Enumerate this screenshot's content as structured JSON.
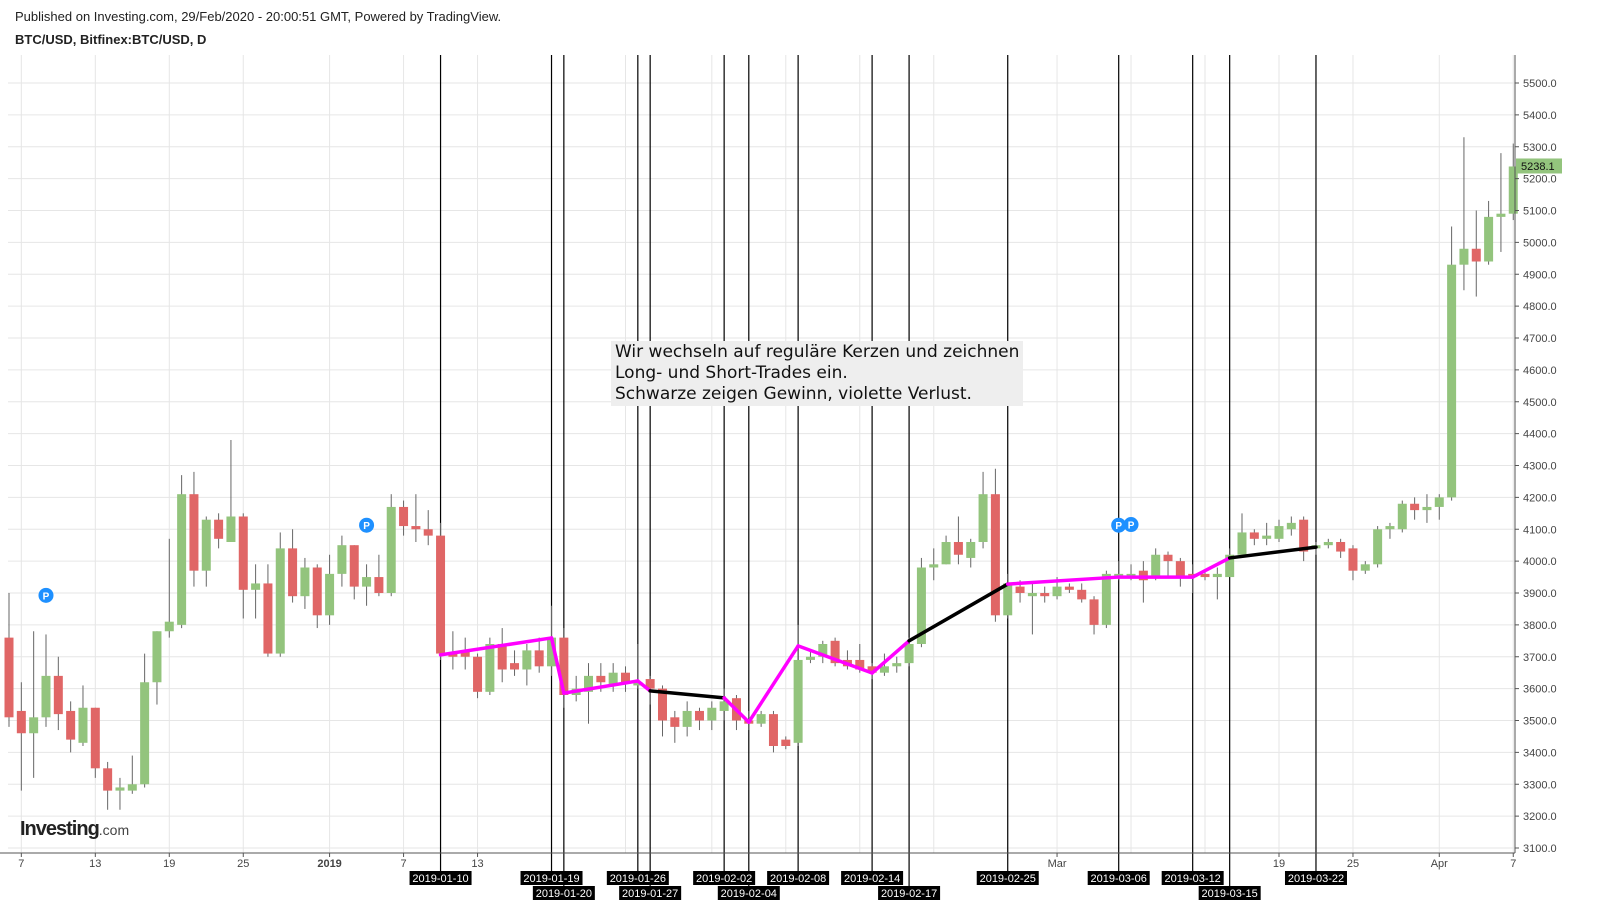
{
  "header": {
    "published": "Published on Investing.com, 29/Feb/2020 - 20:00:51 GMT, Powered by TradingView.",
    "symbol": "BTC/USD, Bitfinex:BTC/USD, D"
  },
  "annotation": {
    "lines": [
      "Wir wechseln auf reguläre Kerzen und zeichnen",
      "Long- und Short-Trades ein.",
      "Schwarze zeigen Gewinn, violette Verlust."
    ]
  },
  "logo": {
    "brand": "Investing",
    "suffix": ".com"
  },
  "colors": {
    "up": "#93c47d",
    "down": "#e06666",
    "loss": "#ff00ff",
    "profit": "#000000",
    "marker": "#1e90ff"
  },
  "chart_data": {
    "type": "candlestick",
    "title": "",
    "ylim": [
      3100,
      5500
    ],
    "y_ticks": [
      "3100.0",
      "3200.0",
      "3300.0",
      "3400.0",
      "3500.0",
      "3600.0",
      "3700.0",
      "3800.0",
      "3900.0",
      "4000.0",
      "4100.0",
      "4200.0",
      "4300.0",
      "4400.0",
      "4500.0",
      "4600.0",
      "4700.0",
      "4800.0",
      "4900.0",
      "5000.0",
      "5100.0",
      "5200.0",
      "5300.0",
      "5400.0",
      "5500.0"
    ],
    "last_price": "5238.1",
    "grid": true,
    "x_ticks": [
      {
        "label": "7",
        "date": "2018-12-07"
      },
      {
        "label": "13",
        "date": "2018-12-13"
      },
      {
        "label": "19",
        "date": "2018-12-19"
      },
      {
        "label": "25",
        "date": "2018-12-25"
      },
      {
        "label": "2019",
        "date": "2019-01-01",
        "bold": true
      },
      {
        "label": "7",
        "date": "2019-01-07"
      },
      {
        "label": "13",
        "date": "2019-01-13"
      },
      {
        "label": "Mar",
        "date": "2019-03-01"
      },
      {
        "label": "19",
        "date": "2019-03-19"
      },
      {
        "label": "25",
        "date": "2019-03-25"
      },
      {
        "label": "Apr",
        "date": "2019-04-01"
      },
      {
        "label": "7",
        "date": "2019-04-07"
      }
    ],
    "candles_columns": [
      "date",
      "open",
      "high",
      "low",
      "close"
    ],
    "candles": [
      [
        "2018-12-06",
        3760,
        3900,
        3480,
        3510
      ],
      [
        "2018-12-07",
        3530,
        3620,
        3280,
        3460
      ],
      [
        "2018-12-08",
        3460,
        3780,
        3320,
        3510
      ],
      [
        "2018-12-09",
        3510,
        3770,
        3480,
        3640
      ],
      [
        "2018-12-10",
        3640,
        3700,
        3470,
        3520
      ],
      [
        "2018-12-11",
        3530,
        3560,
        3400,
        3440
      ],
      [
        "2018-12-12",
        3430,
        3610,
        3420,
        3540
      ],
      [
        "2018-12-13",
        3540,
        3540,
        3320,
        3350
      ],
      [
        "2018-12-14",
        3350,
        3370,
        3220,
        3280
      ],
      [
        "2018-12-15",
        3280,
        3320,
        3220,
        3290
      ],
      [
        "2018-12-16",
        3280,
        3390,
        3270,
        3300
      ],
      [
        "2018-12-17",
        3300,
        3710,
        3290,
        3620
      ],
      [
        "2018-12-18",
        3620,
        3780,
        3550,
        3780
      ],
      [
        "2018-12-19",
        3780,
        4070,
        3760,
        3810
      ],
      [
        "2018-12-20",
        3800,
        4270,
        3790,
        4210
      ],
      [
        "2018-12-21",
        4210,
        4280,
        3920,
        3970
      ],
      [
        "2018-12-22",
        3970,
        4140,
        3920,
        4130
      ],
      [
        "2018-12-23",
        4130,
        4150,
        4040,
        4070
      ],
      [
        "2018-12-24",
        4060,
        4380,
        4060,
        4140
      ],
      [
        "2018-12-25",
        4140,
        4150,
        3820,
        3910
      ],
      [
        "2018-12-26",
        3910,
        3990,
        3820,
        3930
      ],
      [
        "2018-12-27",
        3930,
        3990,
        3700,
        3710
      ],
      [
        "2018-12-28",
        3710,
        4090,
        3700,
        4040
      ],
      [
        "2018-12-29",
        4040,
        4100,
        3870,
        3890
      ],
      [
        "2018-12-30",
        3890,
        4010,
        3850,
        3980
      ],
      [
        "2018-12-31",
        3980,
        3990,
        3790,
        3830
      ],
      [
        "2019-01-01",
        3830,
        4020,
        3800,
        3960
      ],
      [
        "2019-01-02",
        3960,
        4080,
        3920,
        4050
      ],
      [
        "2019-01-03",
        4050,
        4050,
        3880,
        3920
      ],
      [
        "2019-01-04",
        3920,
        3990,
        3860,
        3950
      ],
      [
        "2019-01-05",
        3950,
        4020,
        3890,
        3900
      ],
      [
        "2019-01-06",
        3900,
        4210,
        3890,
        4170
      ],
      [
        "2019-01-07",
        4170,
        4190,
        4080,
        4110
      ],
      [
        "2019-01-08",
        4110,
        4210,
        4060,
        4100
      ],
      [
        "2019-01-09",
        4100,
        4160,
        4050,
        4080
      ],
      [
        "2019-01-10",
        4080,
        4120,
        3690,
        3710
      ],
      [
        "2019-01-11",
        3710,
        3780,
        3660,
        3700
      ],
      [
        "2019-01-12",
        3720,
        3760,
        3660,
        3700
      ],
      [
        "2019-01-13",
        3700,
        3710,
        3570,
        3590
      ],
      [
        "2019-01-14",
        3590,
        3760,
        3580,
        3740
      ],
      [
        "2019-01-15",
        3740,
        3790,
        3620,
        3660
      ],
      [
        "2019-01-16",
        3680,
        3720,
        3640,
        3660
      ],
      [
        "2019-01-17",
        3660,
        3740,
        3610,
        3720
      ],
      [
        "2019-01-18",
        3720,
        3760,
        3650,
        3670
      ],
      [
        "2019-01-19",
        3670,
        3860,
        3640,
        3760
      ],
      [
        "2019-01-20",
        3760,
        3790,
        3540,
        3580
      ],
      [
        "2019-01-21",
        3580,
        3640,
        3560,
        3600
      ],
      [
        "2019-01-22",
        3590,
        3680,
        3490,
        3640
      ],
      [
        "2019-01-23",
        3640,
        3680,
        3590,
        3620
      ],
      [
        "2019-01-24",
        3610,
        3680,
        3590,
        3650
      ],
      [
        "2019-01-25",
        3650,
        3670,
        3590,
        3620
      ],
      [
        "2019-01-26",
        3610,
        3740,
        3600,
        3620
      ],
      [
        "2019-01-27",
        3630,
        3640,
        3550,
        3600
      ],
      [
        "2019-01-28",
        3600,
        3610,
        3450,
        3500
      ],
      [
        "2019-01-29",
        3510,
        3530,
        3430,
        3480
      ],
      [
        "2019-01-30",
        3480,
        3560,
        3450,
        3530
      ],
      [
        "2019-01-31",
        3530,
        3540,
        3470,
        3500
      ],
      [
        "2019-02-01",
        3500,
        3560,
        3470,
        3540
      ],
      [
        "2019-02-02",
        3530,
        3600,
        3500,
        3560
      ],
      [
        "2019-02-03",
        3570,
        3580,
        3470,
        3500
      ],
      [
        "2019-02-04",
        3500,
        3530,
        3470,
        3490
      ],
      [
        "2019-02-05",
        3490,
        3530,
        3480,
        3520
      ],
      [
        "2019-02-06",
        3520,
        3530,
        3400,
        3420
      ],
      [
        "2019-02-07",
        3440,
        3450,
        3410,
        3420
      ],
      [
        "2019-02-08",
        3430,
        3800,
        3420,
        3690
      ],
      [
        "2019-02-09",
        3690,
        3720,
        3680,
        3700
      ],
      [
        "2019-02-10",
        3700,
        3750,
        3680,
        3740
      ],
      [
        "2019-02-11",
        3750,
        3760,
        3670,
        3680
      ],
      [
        "2019-02-12",
        3690,
        3720,
        3660,
        3670
      ],
      [
        "2019-02-13",
        3690,
        3740,
        3650,
        3660
      ],
      [
        "2019-02-14",
        3670,
        3680,
        3630,
        3650
      ],
      [
        "2019-02-15",
        3650,
        3710,
        3640,
        3670
      ],
      [
        "2019-02-16",
        3670,
        3700,
        3650,
        3680
      ],
      [
        "2019-02-17",
        3680,
        3760,
        3670,
        3740
      ],
      [
        "2019-02-18",
        3740,
        4010,
        3730,
        3980
      ],
      [
        "2019-02-19",
        3980,
        4040,
        3940,
        3990
      ],
      [
        "2019-02-20",
        3990,
        4080,
        3990,
        4060
      ],
      [
        "2019-02-21",
        4060,
        4140,
        3990,
        4020
      ],
      [
        "2019-02-22",
        4010,
        4070,
        3980,
        4060
      ],
      [
        "2019-02-23",
        4060,
        4280,
        4040,
        4210
      ],
      [
        "2019-02-24",
        4210,
        4290,
        3810,
        3830
      ],
      [
        "2019-02-25",
        3830,
        3960,
        3820,
        3930
      ],
      [
        "2019-02-26",
        3920,
        3940,
        3870,
        3900
      ],
      [
        "2019-02-27",
        3890,
        3930,
        3770,
        3900
      ],
      [
        "2019-02-28",
        3900,
        3920,
        3870,
        3890
      ],
      [
        "2019-03-01",
        3890,
        3950,
        3880,
        3920
      ],
      [
        "2019-03-02",
        3920,
        3930,
        3900,
        3910
      ],
      [
        "2019-03-03",
        3910,
        3930,
        3870,
        3880
      ],
      [
        "2019-03-04",
        3880,
        3890,
        3770,
        3800
      ],
      [
        "2019-03-05",
        3800,
        3970,
        3790,
        3960
      ],
      [
        "2019-03-06",
        3950,
        4000,
        3940,
        3960
      ],
      [
        "2019-03-07",
        3950,
        3990,
        3940,
        3960
      ],
      [
        "2019-03-08",
        3970,
        4000,
        3870,
        3940
      ],
      [
        "2019-03-09",
        3950,
        4040,
        3940,
        4020
      ],
      [
        "2019-03-10",
        4020,
        4030,
        3950,
        4000
      ],
      [
        "2019-03-11",
        4000,
        4010,
        3920,
        3950
      ],
      [
        "2019-03-12",
        3960,
        3990,
        3900,
        3950
      ],
      [
        "2019-03-13",
        3960,
        3970,
        3940,
        3950
      ],
      [
        "2019-03-14",
        3950,
        3980,
        3880,
        3960
      ],
      [
        "2019-03-15",
        3950,
        4040,
        3950,
        4020
      ],
      [
        "2019-03-16",
        4020,
        4150,
        4020,
        4090
      ],
      [
        "2019-03-17",
        4090,
        4100,
        4050,
        4070
      ],
      [
        "2019-03-18",
        4070,
        4120,
        4050,
        4080
      ],
      [
        "2019-03-19",
        4070,
        4130,
        4060,
        4110
      ],
      [
        "2019-03-20",
        4100,
        4140,
        4080,
        4120
      ],
      [
        "2019-03-21",
        4130,
        4140,
        4000,
        4030
      ],
      [
        "2019-03-22",
        4040,
        4060,
        4020,
        4050
      ],
      [
        "2019-03-23",
        4050,
        4070,
        4040,
        4060
      ],
      [
        "2019-03-24",
        4060,
        4070,
        4010,
        4030
      ],
      [
        "2019-03-25",
        4040,
        4050,
        3940,
        3970
      ],
      [
        "2019-03-26",
        3970,
        4000,
        3960,
        3990
      ],
      [
        "2019-03-27",
        3990,
        4110,
        3980,
        4100
      ],
      [
        "2019-03-28",
        4100,
        4120,
        4070,
        4110
      ],
      [
        "2019-03-29",
        4100,
        4190,
        4090,
        4180
      ],
      [
        "2019-03-30",
        4180,
        4200,
        4130,
        4160
      ],
      [
        "2019-03-31",
        4160,
        4210,
        4120,
        4170
      ],
      [
        "2019-04-01",
        4170,
        4210,
        4130,
        4200
      ],
      [
        "2019-04-02",
        4200,
        5050,
        4190,
        4930
      ],
      [
        "2019-04-03",
        4930,
        5330,
        4850,
        4980
      ],
      [
        "2019-04-04",
        4980,
        5100,
        4830,
        4940
      ],
      [
        "2019-04-05",
        4940,
        5130,
        4930,
        5080
      ],
      [
        "2019-04-06",
        5080,
        5280,
        4970,
        5090
      ],
      [
        "2019-04-07",
        5090,
        5310,
        5070,
        5238.1
      ]
    ],
    "vertical_markers": [
      "2019-01-10",
      "2019-01-19",
      "2019-01-20",
      "2019-01-26",
      "2019-01-27",
      "2019-02-02",
      "2019-02-04",
      "2019-02-08",
      "2019-02-14",
      "2019-02-17",
      "2019-02-25",
      "2019-03-06",
      "2019-03-12",
      "2019-03-15",
      "2019-03-22"
    ],
    "trades": [
      {
        "from": [
          "2019-01-10",
          3706
        ],
        "to": [
          "2019-01-19",
          3759
        ],
        "result": "loss"
      },
      {
        "from": [
          "2019-01-19",
          3759
        ],
        "to": [
          "2019-01-20",
          3586
        ],
        "result": "loss"
      },
      {
        "from": [
          "2019-01-20",
          3586
        ],
        "to": [
          "2019-01-26",
          3624
        ],
        "result": "loss"
      },
      {
        "from": [
          "2019-01-26",
          3624
        ],
        "to": [
          "2019-01-27",
          3593
        ],
        "result": "loss"
      },
      {
        "from": [
          "2019-01-27",
          3593
        ],
        "to": [
          "2019-02-02",
          3571
        ],
        "result": "profit"
      },
      {
        "from": [
          "2019-02-02",
          3571
        ],
        "to": [
          "2019-02-04",
          3495
        ],
        "result": "loss"
      },
      {
        "from": [
          "2019-02-04",
          3495
        ],
        "to": [
          "2019-02-08",
          3734
        ],
        "result": "loss"
      },
      {
        "from": [
          "2019-02-08",
          3734
        ],
        "to": [
          "2019-02-14",
          3649
        ],
        "result": "loss"
      },
      {
        "from": [
          "2019-02-14",
          3649
        ],
        "to": [
          "2019-02-17",
          3750
        ],
        "result": "loss"
      },
      {
        "from": [
          "2019-02-17",
          3750
        ],
        "to": [
          "2019-02-25",
          3928
        ],
        "result": "profit"
      },
      {
        "from": [
          "2019-02-25",
          3928
        ],
        "to": [
          "2019-03-06",
          3950
        ],
        "result": "loss"
      },
      {
        "from": [
          "2019-03-06",
          3950
        ],
        "to": [
          "2019-03-12",
          3950
        ],
        "result": "loss"
      },
      {
        "from": [
          "2019-03-12",
          3950
        ],
        "to": [
          "2019-03-15",
          4010
        ],
        "result": "loss"
      },
      {
        "from": [
          "2019-03-15",
          4010
        ],
        "to": [
          "2019-03-22",
          4044
        ],
        "result": "profit"
      }
    ],
    "markers": [
      {
        "label": "P",
        "date": "2018-12-09",
        "price": 3830
      },
      {
        "label": "P",
        "date": "2019-01-04",
        "price": 4050
      },
      {
        "label": "P",
        "date": "2019-03-06",
        "price": 4050
      },
      {
        "label": "P",
        "date": "2019-03-07",
        "price": 4052
      }
    ]
  }
}
